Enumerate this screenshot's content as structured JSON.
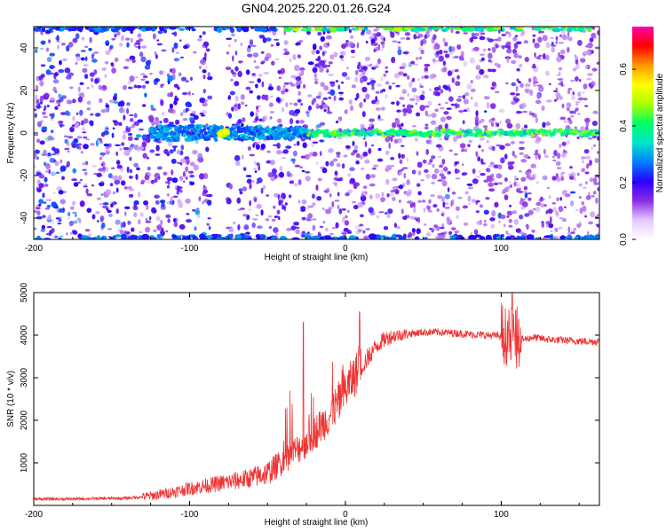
{
  "chart_data": [
    {
      "type": "heatmap",
      "title": "GN04.2025.220.01.26.G24",
      "xlabel": "Height of straight line (km)",
      "ylabel": "Frequency (Hz)",
      "xlim": [
        -200,
        163
      ],
      "ylim": [
        -50,
        50
      ],
      "x_ticks": [
        "-200",
        "-100",
        "0",
        "100"
      ],
      "y_ticks": [
        "40",
        "20",
        "0",
        "-20",
        "-40"
      ],
      "colorbar": {
        "label": "Normalized spectral amplitude",
        "range": [
          0,
          0.75
        ],
        "ticks": [
          "0.0",
          "0.2",
          "0.4",
          "0.6"
        ],
        "colormap": [
          "#ffffff",
          "#e6c8ff",
          "#8a2be2",
          "#2a00ff",
          "#0080ff",
          "#00e5c8",
          "#00ff66",
          "#aaff00",
          "#ffff00",
          "#ff9900",
          "#ff0000",
          "#ff00aa"
        ]
      },
      "features": {
        "signal_line_freq_hz": 0,
        "signal_start_km": -125,
        "blank_band_km": [
          -87,
          -76
        ],
        "peak_km": -78
      }
    },
    {
      "type": "line",
      "title": "",
      "xlabel": "Height of straight line (km)",
      "ylabel": "SNR (10 * v/v)",
      "xlim": [
        -200,
        163
      ],
      "ylim": [
        0,
        5000
      ],
      "x_ticks": [
        "-200",
        "-100",
        "0",
        "100"
      ],
      "y_ticks": [
        "5000",
        "4000",
        "3000",
        "2000",
        "1000"
      ],
      "color": "#ee3333",
      "series": [
        {
          "x": [
            -200,
            -180,
            -160,
            -140,
            -130,
            -120,
            -110,
            -100,
            -90,
            -80,
            -70,
            -60,
            -50,
            -45,
            -40,
            -35,
            -30,
            -25,
            -20,
            -15,
            -10,
            -5,
            0,
            5,
            10,
            15,
            20,
            25,
            30,
            40,
            50,
            60,
            70,
            80,
            90,
            100,
            105,
            110,
            115,
            120,
            130,
            140,
            150,
            163
          ],
          "y": [
            150,
            150,
            160,
            170,
            200,
            250,
            320,
            400,
            460,
            520,
            580,
            650,
            760,
            900,
            1050,
            1200,
            1350,
            1520,
            1700,
            1900,
            2100,
            2400,
            2700,
            3000,
            3250,
            3500,
            3750,
            3900,
            3980,
            4030,
            4070,
            4070,
            4050,
            4020,
            4000,
            3980,
            3950,
            3900,
            3900,
            3950,
            3900,
            3880,
            3860,
            3850
          ]
        }
      ],
      "annotations": [
        {
          "text": "spike",
          "x": -27,
          "y": 4300
        },
        {
          "text": "spike",
          "x": 9,
          "y": 4550
        },
        {
          "text": "burst",
          "x": 107,
          "y": 5050
        }
      ]
    }
  ]
}
